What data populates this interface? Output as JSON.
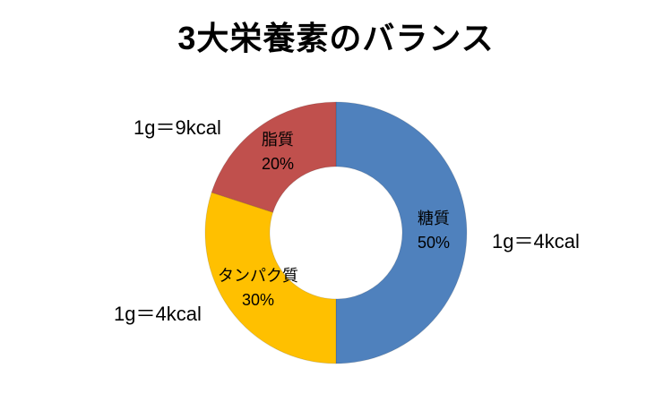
{
  "page": {
    "background_color": "#ffffff",
    "text_color": "#000000"
  },
  "chart_data": {
    "type": "pie",
    "subtype": "donut",
    "title": "3大栄養素のバランス",
    "legend": "none",
    "direction": "clockwise",
    "start_angle_deg": 0,
    "inner_radius_ratio": 0.507,
    "hole_color": "#ffffff",
    "label_color": "#000000",
    "categories": [
      "糖質",
      "タンパク質",
      "脂質"
    ],
    "values": [
      50,
      30,
      20
    ],
    "unit": "%",
    "slices": [
      {
        "key": "carbohydrate",
        "name": "糖質",
        "value": 50,
        "pct_label": "50%",
        "color": "#4F81BD",
        "kcal_label": "1g＝4kcal"
      },
      {
        "key": "protein",
        "name": "タンパク質",
        "value": 30,
        "pct_label": "30%",
        "color": "#FFC000",
        "kcal_label": "1g＝4kcal"
      },
      {
        "key": "fat",
        "name": "脂質",
        "value": 20,
        "pct_label": "20%",
        "color": "#C0504D",
        "kcal_label": "1g＝9kcal"
      }
    ]
  }
}
